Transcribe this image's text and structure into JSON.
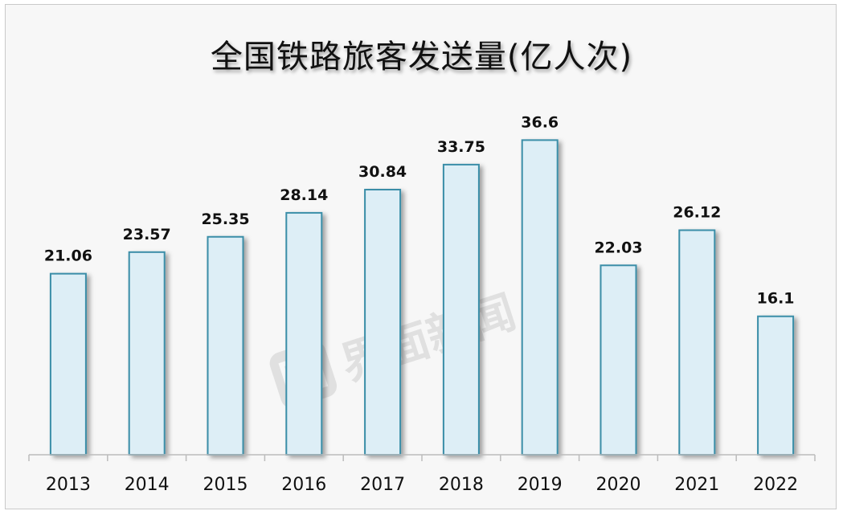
{
  "chart_data": {
    "type": "bar",
    "title": "全国铁路旅客发送量(亿人次)",
    "categories": [
      "2013",
      "2014",
      "2015",
      "2016",
      "2017",
      "2018",
      "2019",
      "2020",
      "2021",
      "2022"
    ],
    "values": [
      21.06,
      23.57,
      25.35,
      28.14,
      30.84,
      33.75,
      36.6,
      22.03,
      26.12,
      16.1
    ],
    "data_labels": [
      "21.06",
      "23.57",
      "25.35",
      "28.14",
      "30.84",
      "33.75",
      "36.6",
      "22.03",
      "26.12",
      "16.1"
    ],
    "ylim": [
      0,
      40
    ],
    "grid": false,
    "legend": "none",
    "colors": {
      "bar_fill": "#ddeef6",
      "bar_stroke": "#3a8ea8",
      "axis": "#bcbcbc",
      "label": "#111111",
      "background": "#f7f7f7"
    }
  },
  "watermark": {
    "text": "界面新闻",
    "icon": "jiemian-logo-icon"
  }
}
